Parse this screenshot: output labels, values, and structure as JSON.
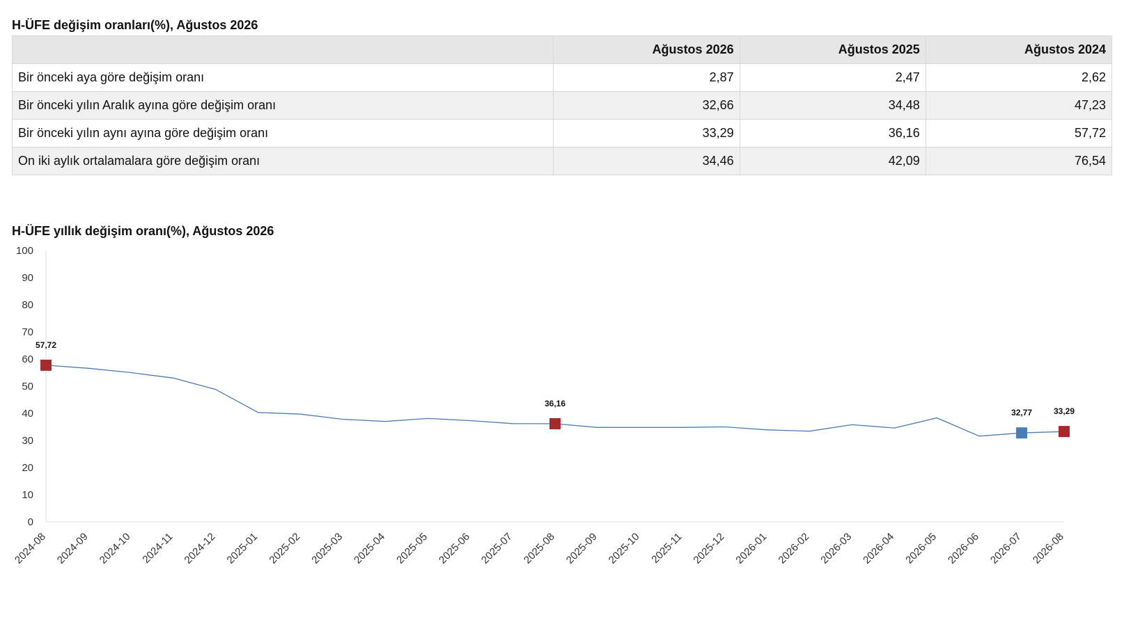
{
  "table": {
    "title": "H-ÜFE değişim oranları(%), Ağustos 2026",
    "headers": [
      "",
      "Ağustos 2026",
      "Ağustos 2025",
      "Ağustos 2024"
    ],
    "rows": [
      {
        "label": "Bir önceki aya göre değişim oranı",
        "values": [
          "2,87",
          "2,47",
          "2,62"
        ]
      },
      {
        "label": "Bir önceki yılın Aralık ayına göre değişim oranı",
        "values": [
          "32,66",
          "34,48",
          "47,23"
        ]
      },
      {
        "label": "Bir önceki yılın aynı ayına göre değişim oranı",
        "values": [
          "33,29",
          "36,16",
          "57,72"
        ]
      },
      {
        "label": "On iki aylık ortalamalara göre değişim oranı",
        "values": [
          "34,46",
          "42,09",
          "76,54"
        ]
      }
    ]
  },
  "chart": {
    "title": "H-ÜFE yıllık değişim oranı(%), Ağustos 2026"
  },
  "chart_data": {
    "type": "line",
    "title": "H-ÜFE yıllık değişim oranı(%), Ağustos 2026",
    "xlabel": "",
    "ylabel": "",
    "ylim": [
      0,
      100
    ],
    "yticks": [
      "0",
      "10",
      "20",
      "30",
      "40",
      "50",
      "60",
      "70",
      "80",
      "90",
      "100"
    ],
    "grid": false,
    "line_color": "#4a7cb5",
    "x": [
      "2024-08",
      "2024-09",
      "2024-10",
      "2024-11",
      "2024-12",
      "2025-01",
      "2025-02",
      "2025-03",
      "2025-04",
      "2025-05",
      "2025-06",
      "2025-07",
      "2025-08",
      "2025-09",
      "2025-10",
      "2025-11",
      "2025-12",
      "2026-01",
      "2026-02",
      "2026-03",
      "2026-04",
      "2026-05",
      "2026-06",
      "2026-07",
      "2026-08"
    ],
    "values": [
      57.72,
      56.6,
      55.0,
      53.0,
      48.8,
      40.3,
      39.7,
      37.8,
      37.0,
      38.1,
      37.3,
      36.2,
      36.16,
      34.8,
      34.8,
      34.8,
      35.0,
      33.9,
      33.4,
      35.8,
      34.6,
      38.3,
      31.6,
      32.77,
      33.29
    ],
    "highlights": [
      {
        "x": "2024-08",
        "value": 57.72,
        "label": "57,72",
        "color": "#a52a2a"
      },
      {
        "x": "2025-08",
        "value": 36.16,
        "label": "36,16",
        "color": "#a52a2a"
      },
      {
        "x": "2026-07",
        "value": 32.77,
        "label": "32,77",
        "color": "#4a7cb5"
      },
      {
        "x": "2026-08",
        "value": 33.29,
        "label": "33,29",
        "color": "#a52a2a"
      }
    ]
  }
}
